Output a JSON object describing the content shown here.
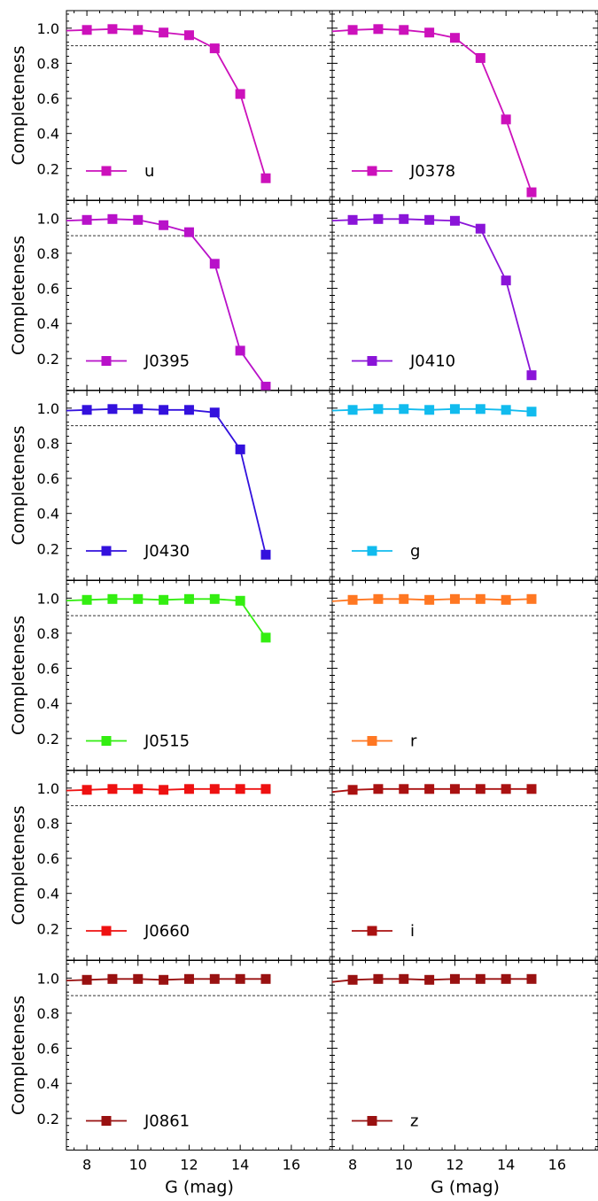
{
  "figure": {
    "ylabel": "Completeness",
    "xlabel": "G (mag)",
    "x_ticks": [
      8,
      10,
      12,
      14,
      16
    ],
    "y_ticks": [
      0.2,
      0.4,
      0.6,
      0.8,
      1.0
    ],
    "y_tick_labels": [
      "0.2",
      "0.4",
      "0.6",
      "0.8",
      "1.0"
    ],
    "x_tick_labels": [
      "8",
      "10",
      "12",
      "14",
      "16"
    ]
  },
  "chart_data": [
    {
      "type": "line",
      "filter": "u",
      "color": "#cc11bb",
      "xlim": [
        7.2,
        17.6
      ],
      "ylim": [
        0.02,
        1.1
      ],
      "reference_line": 0.9,
      "x": [
        7,
        8,
        9,
        10,
        11,
        12,
        13,
        14,
        15
      ],
      "y": [
        0.985,
        0.99,
        0.995,
        0.99,
        0.975,
        0.96,
        0.885,
        0.625,
        0.145
      ],
      "grid": false,
      "legend_position": "lower-left"
    },
    {
      "type": "line",
      "filter": "J0378",
      "color": "#cc11bb",
      "xlim": [
        7.2,
        17.6
      ],
      "ylim": [
        0.02,
        1.1
      ],
      "reference_line": 0.9,
      "x": [
        7,
        8,
        9,
        10,
        11,
        12,
        13,
        14,
        15
      ],
      "y": [
        0.98,
        0.99,
        0.995,
        0.99,
        0.975,
        0.945,
        0.83,
        0.48,
        0.065
      ],
      "grid": false,
      "legend_position": "lower-left"
    },
    {
      "type": "line",
      "filter": "J0395",
      "color": "#b811c9",
      "xlim": [
        7.2,
        17.6
      ],
      "ylim": [
        0.02,
        1.1
      ],
      "reference_line": 0.9,
      "x": [
        7,
        8,
        9,
        10,
        11,
        12,
        13,
        14,
        15
      ],
      "y": [
        0.985,
        0.99,
        0.995,
        0.99,
        0.96,
        0.92,
        0.74,
        0.245,
        0.04
      ],
      "grid": false,
      "legend_position": "lower-left"
    },
    {
      "type": "line",
      "filter": "J0410",
      "color": "#8a14d8",
      "xlim": [
        7.2,
        17.6
      ],
      "ylim": [
        0.02,
        1.1
      ],
      "reference_line": 0.9,
      "x": [
        7,
        8,
        9,
        10,
        11,
        12,
        13,
        14,
        15
      ],
      "y": [
        0.985,
        0.99,
        0.995,
        0.995,
        0.99,
        0.985,
        0.94,
        0.645,
        0.105
      ],
      "grid": false,
      "legend_position": "lower-left"
    },
    {
      "type": "line",
      "filter": "J0430",
      "color": "#3311dd",
      "xlim": [
        7.2,
        17.6
      ],
      "ylim": [
        0.02,
        1.1
      ],
      "reference_line": 0.9,
      "x": [
        7,
        8,
        9,
        10,
        11,
        12,
        13,
        14,
        15
      ],
      "y": [
        0.985,
        0.99,
        0.995,
        0.995,
        0.99,
        0.99,
        0.975,
        0.765,
        0.165
      ],
      "grid": false,
      "legend_position": "lower-left"
    },
    {
      "type": "line",
      "filter": "g",
      "color": "#11bbee",
      "xlim": [
        7.2,
        17.6
      ],
      "ylim": [
        0.02,
        1.1
      ],
      "reference_line": 0.9,
      "x": [
        7,
        8,
        9,
        10,
        11,
        12,
        13,
        14,
        15
      ],
      "y": [
        0.985,
        0.99,
        0.995,
        0.995,
        0.99,
        0.995,
        0.995,
        0.99,
        0.98
      ],
      "grid": false,
      "legend_position": "lower-left"
    },
    {
      "type": "line",
      "filter": "J0515",
      "color": "#33ee11",
      "xlim": [
        7.2,
        17.6
      ],
      "ylim": [
        0.02,
        1.1
      ],
      "reference_line": 0.9,
      "x": [
        7,
        8,
        9,
        10,
        11,
        12,
        13,
        14,
        15
      ],
      "y": [
        0.985,
        0.99,
        0.995,
        0.995,
        0.99,
        0.995,
        0.995,
        0.985,
        0.775
      ],
      "grid": false,
      "legend_position": "lower-left"
    },
    {
      "type": "line",
      "filter": "r",
      "color": "#ff7722",
      "xlim": [
        7.2,
        17.6
      ],
      "ylim": [
        0.02,
        1.1
      ],
      "reference_line": 0.9,
      "x": [
        7,
        8,
        9,
        10,
        11,
        12,
        13,
        14,
        15
      ],
      "y": [
        0.98,
        0.99,
        0.995,
        0.995,
        0.99,
        0.995,
        0.995,
        0.99,
        0.995
      ],
      "grid": false,
      "legend_position": "lower-left"
    },
    {
      "type": "line",
      "filter": "J0660",
      "color": "#ee1111",
      "xlim": [
        7.2,
        17.6
      ],
      "ylim": [
        0.02,
        1.1
      ],
      "reference_line": 0.9,
      "x": [
        7,
        8,
        9,
        10,
        11,
        12,
        13,
        14,
        15
      ],
      "y": [
        0.985,
        0.99,
        0.995,
        0.995,
        0.99,
        0.995,
        0.995,
        0.995,
        0.995
      ],
      "grid": false,
      "legend_position": "lower-left"
    },
    {
      "type": "line",
      "filter": "i",
      "color": "#aa1111",
      "xlim": [
        7.2,
        17.6
      ],
      "ylim": [
        0.02,
        1.1
      ],
      "reference_line": 0.9,
      "x": [
        7,
        8,
        9,
        10,
        11,
        12,
        13,
        14,
        15
      ],
      "y": [
        0.975,
        0.99,
        0.995,
        0.995,
        0.995,
        0.995,
        0.995,
        0.995,
        0.995
      ],
      "grid": false,
      "legend_position": "lower-left"
    },
    {
      "type": "line",
      "filter": "J0861",
      "color": "#991111",
      "xlim": [
        7.2,
        17.6
      ],
      "ylim": [
        0.02,
        1.1
      ],
      "reference_line": 0.9,
      "x": [
        7,
        8,
        9,
        10,
        11,
        12,
        13,
        14,
        15
      ],
      "y": [
        0.985,
        0.99,
        0.995,
        0.995,
        0.99,
        0.995,
        0.995,
        0.995,
        0.995
      ],
      "grid": false,
      "legend_position": "lower-left"
    },
    {
      "type": "line",
      "filter": "z",
      "color": "#991111",
      "xlim": [
        7.2,
        17.6
      ],
      "ylim": [
        0.02,
        1.1
      ],
      "reference_line": 0.9,
      "x": [
        7,
        8,
        9,
        10,
        11,
        12,
        13,
        14,
        15
      ],
      "y": [
        0.975,
        0.99,
        0.995,
        0.995,
        0.99,
        0.995,
        0.995,
        0.995,
        0.995
      ],
      "grid": false,
      "legend_position": "lower-left"
    }
  ]
}
